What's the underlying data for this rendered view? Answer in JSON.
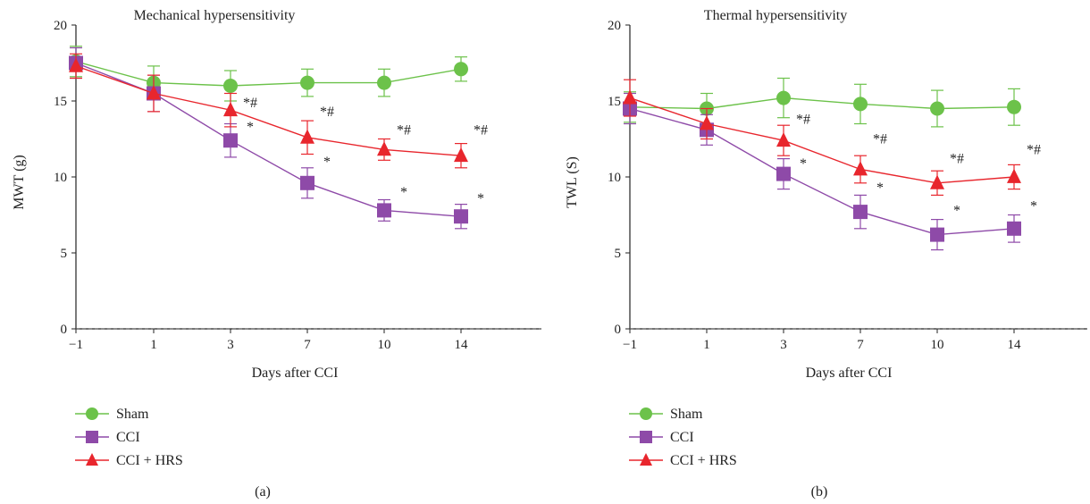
{
  "series_styles": {
    "Sham": {
      "color": "#6cc24a",
      "marker": "circle"
    },
    "CCI": {
      "color": "#8e4aa8",
      "marker": "square"
    },
    "CCI + HRS": {
      "color": "#e8262d",
      "marker": "triangle"
    }
  },
  "chart_data": [
    {
      "panel_label": "(a)",
      "type": "line",
      "title": "Mechanical hypersensitivity",
      "xlabel": "Days after CCI",
      "ylabel": "MWT (g)",
      "x": [
        "−1",
        "1",
        "3",
        "7",
        "10",
        "14"
      ],
      "ylim": [
        0,
        20
      ],
      "yticks": [
        "0",
        "5",
        "10",
        "15",
        "20"
      ],
      "grid": false,
      "legend_position": "bottom-left",
      "series": [
        {
          "name": "Sham",
          "values": [
            17.6,
            16.2,
            16.0,
            16.2,
            16.2,
            17.1
          ],
          "err": [
            1.0,
            1.1,
            1.0,
            0.9,
            0.9,
            0.8
          ]
        },
        {
          "name": "CCI",
          "values": [
            17.5,
            15.5,
            12.4,
            9.6,
            7.8,
            7.4
          ],
          "err": [
            1.0,
            1.2,
            1.1,
            1.0,
            0.7,
            0.8
          ]
        },
        {
          "name": "CCI + HRS",
          "values": [
            17.3,
            15.5,
            14.4,
            12.6,
            11.8,
            11.4
          ],
          "err": [
            0.8,
            1.2,
            1.1,
            1.1,
            0.7,
            0.8
          ]
        }
      ],
      "annotations": [
        {
          "text": "*#",
          "x": "3",
          "y": 14.6
        },
        {
          "text": "*",
          "x": "3",
          "y": 13.0
        },
        {
          "text": "*#",
          "x": "7",
          "y": 14.0
        },
        {
          "text": "*",
          "x": "7",
          "y": 10.7
        },
        {
          "text": "*#",
          "x": "10",
          "y": 12.8
        },
        {
          "text": "*",
          "x": "10",
          "y": 8.7
        },
        {
          "text": "*#",
          "x": "14",
          "y": 12.8
        },
        {
          "text": "*",
          "x": "14",
          "y": 8.3
        }
      ]
    },
    {
      "panel_label": "(b)",
      "type": "line",
      "title": "Thermal hypersensitivity",
      "xlabel": "Days after CCI",
      "ylabel": "TWL (S)",
      "x": [
        "−1",
        "1",
        "3",
        "7",
        "10",
        "14"
      ],
      "ylim": [
        0,
        20
      ],
      "yticks": [
        "0",
        "5",
        "10",
        "15",
        "20"
      ],
      "grid": false,
      "legend_position": "bottom-left",
      "series": [
        {
          "name": "Sham",
          "values": [
            14.6,
            14.5,
            15.2,
            14.8,
            14.5,
            14.6
          ],
          "err": [
            1.0,
            1.0,
            1.3,
            1.3,
            1.2,
            1.2
          ]
        },
        {
          "name": "CCI",
          "values": [
            14.5,
            13.1,
            10.2,
            7.7,
            6.2,
            6.6
          ],
          "err": [
            1.0,
            1.0,
            1.0,
            1.1,
            1.0,
            0.9
          ]
        },
        {
          "name": "CCI + HRS",
          "values": [
            15.2,
            13.5,
            12.4,
            10.5,
            9.6,
            10.0
          ],
          "err": [
            1.2,
            1.0,
            1.0,
            0.9,
            0.8,
            0.8
          ]
        }
      ],
      "annotations": [
        {
          "text": "*#",
          "x": "3",
          "y": 13.5
        },
        {
          "text": "*",
          "x": "3",
          "y": 10.6
        },
        {
          "text": "*#",
          "x": "7",
          "y": 12.2
        },
        {
          "text": "*",
          "x": "7",
          "y": 9.0
        },
        {
          "text": "*#",
          "x": "10",
          "y": 10.9
        },
        {
          "text": "*",
          "x": "10",
          "y": 7.5
        },
        {
          "text": "*#",
          "x": "14",
          "y": 11.5
        },
        {
          "text": "*",
          "x": "14",
          "y": 7.8
        }
      ]
    }
  ]
}
